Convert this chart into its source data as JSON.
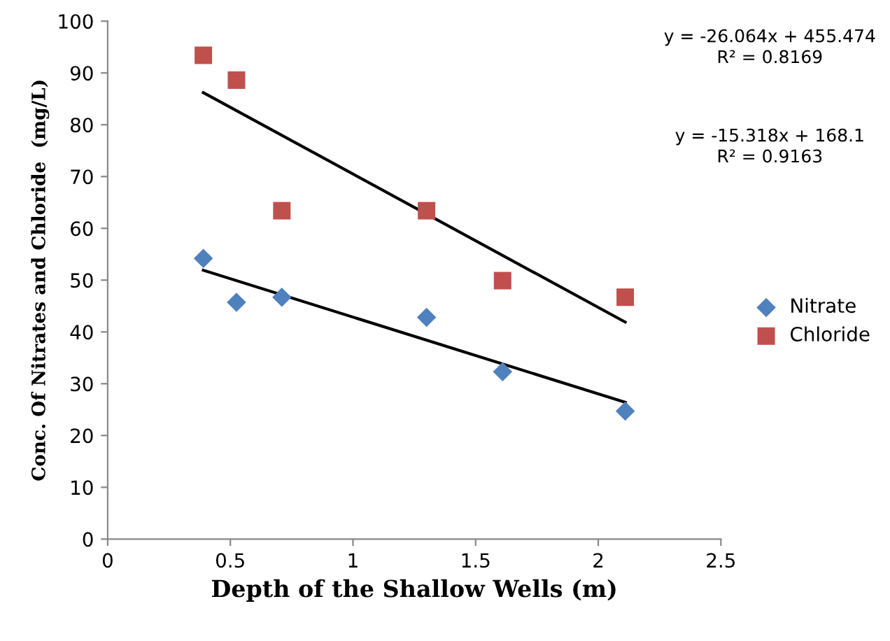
{
  "chart_data": {
    "type": "scatter",
    "xlabel": "Depth of the Shallow Wells (m)",
    "ylabel": "Conc. Of Nitrates and Chloride  (mg/L)",
    "xlim": [
      0,
      2.5
    ],
    "xticks": [
      0,
      0.5,
      1,
      1.5,
      2,
      2.5
    ],
    "ylim": [
      0,
      100
    ],
    "yticks": [
      0,
      10,
      20,
      30,
      40,
      50,
      60,
      70,
      80,
      90,
      100
    ],
    "grid": false,
    "legend": "right",
    "annotations": [
      "y = -26.064x + 455.474\nR² = 0.8169",
      "y = -15.318x + 168.1\nR² = 0.9163"
    ],
    "series": [
      {
        "name": "Nitrate",
        "color": "#4f81bd",
        "marker": "diamond",
        "x": [
          0.39,
          0.525,
          0.71,
          1.3,
          1.61,
          2.11
        ],
        "values": [
          54.2,
          45.7,
          46.7,
          42.8,
          32.3,
          24.7
        ]
      },
      {
        "name": "Chloride",
        "color": "#c0504d",
        "marker": "square",
        "x": [
          0.39,
          0.525,
          0.71,
          1.3,
          1.61,
          2.11
        ],
        "values": [
          93.4,
          88.6,
          63.4,
          63.4,
          49.9,
          46.7
        ]
      },
      {
        "type": "line",
        "color": "#000000",
        "x": [
          0.39,
          2.11
        ],
        "values": [
          86.2,
          41.9
        ]
      },
      {
        "type": "line",
        "color": "#000000",
        "x": [
          0.39,
          2.11
        ],
        "values": [
          51.9,
          26.4
        ]
      }
    ]
  }
}
